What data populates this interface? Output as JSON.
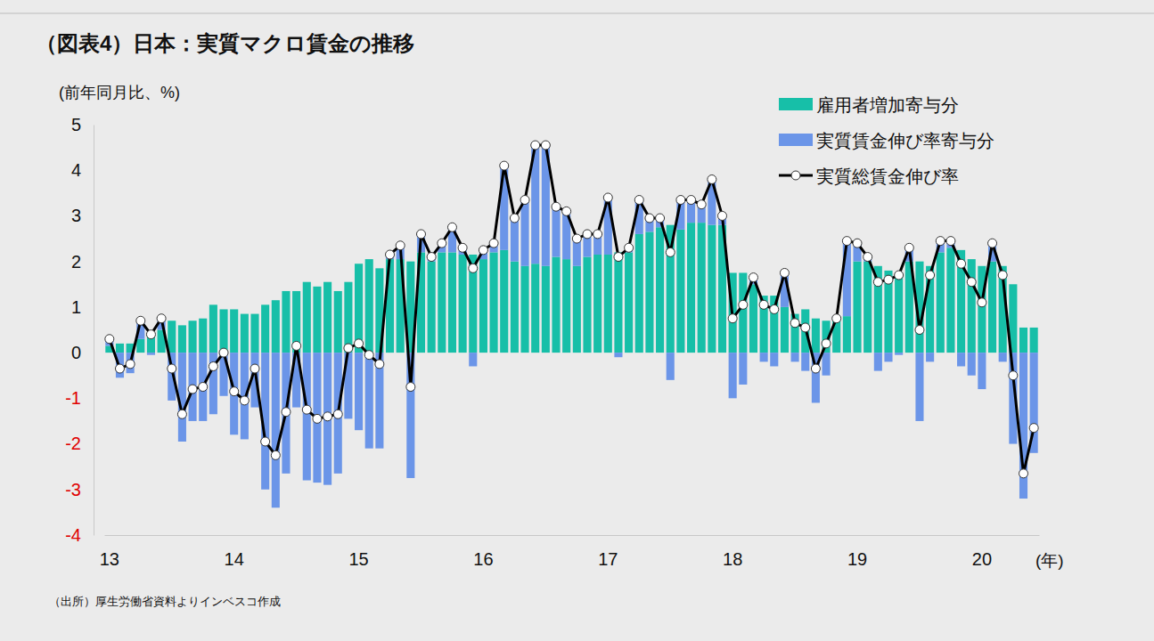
{
  "chart_data": {
    "type": "bar",
    "title": "（図表4）日本：実質マクロ賃金の推移",
    "ylabel": "(前年同月比、%)",
    "xlabel": "(年)",
    "source": "（出所）厚生労働省資料よりインベスコ作成",
    "stacked": true,
    "legend": "upper right",
    "grid": false,
    "categories": [
      "13",
      null,
      null,
      null,
      null,
      null,
      null,
      null,
      null,
      null,
      null,
      null,
      "14",
      null,
      null,
      null,
      null,
      null,
      null,
      null,
      null,
      null,
      null,
      null,
      "15",
      null,
      null,
      null,
      null,
      null,
      null,
      null,
      null,
      null,
      null,
      null,
      "16",
      null,
      null,
      null,
      null,
      null,
      null,
      null,
      null,
      null,
      null,
      null,
      "17",
      null,
      null,
      null,
      null,
      null,
      null,
      null,
      null,
      null,
      null,
      null,
      "18",
      null,
      null,
      null,
      null,
      null,
      null,
      null,
      null,
      null,
      null,
      null,
      "19",
      null,
      null,
      null,
      null,
      null,
      null,
      null,
      null,
      null,
      null,
      null,
      "20",
      null,
      null,
      null,
      null,
      null
    ],
    "ylim": [
      -4,
      5
    ],
    "yticks": [
      -4,
      -3,
      -2,
      -1,
      0,
      1,
      2,
      3,
      4,
      5
    ],
    "series": [
      {
        "name": "雇用者増加寄与分",
        "type": "bar",
        "color": "#17bfa8",
        "values": [
          0.15,
          0.2,
          0.2,
          0.3,
          0.45,
          0.5,
          0.7,
          0.6,
          0.7,
          0.75,
          1.05,
          0.95,
          0.95,
          0.85,
          0.85,
          1.05,
          1.15,
          1.35,
          1.35,
          1.55,
          1.45,
          1.55,
          1.35,
          1.55,
          1.95,
          2.05,
          1.85,
          2.05,
          2.05,
          2.0,
          2.2,
          2.0,
          2.2,
          2.2,
          2.15,
          2.15,
          2.05,
          2.2,
          2.25,
          2.0,
          1.9,
          1.95,
          1.9,
          2.1,
          2.05,
          1.9,
          2.1,
          2.15,
          2.15,
          2.2,
          2.2,
          2.6,
          2.65,
          2.75,
          2.8,
          2.7,
          2.85,
          2.85,
          2.8,
          2.8,
          1.75,
          1.75,
          1.5,
          1.25,
          1.25,
          1.0,
          0.85,
          0.95,
          0.75,
          0.7,
          0.75,
          0.8,
          2.0,
          2.0,
          1.9,
          1.8,
          1.75,
          2.0,
          2.0,
          1.9,
          2.2,
          2.3,
          2.25,
          2.05,
          1.9,
          2.0,
          1.9,
          1.5,
          0.55,
          0.55
        ]
      },
      {
        "name": "実質賃金伸び率寄与分",
        "type": "bar",
        "color": "#6b95e8",
        "values": [
          0.15,
          -0.55,
          -0.45,
          0.4,
          -0.05,
          0.25,
          -1.05,
          -1.95,
          -1.5,
          -1.5,
          -1.35,
          -0.95,
          -1.8,
          -1.9,
          -1.2,
          -3.0,
          -3.4,
          -2.65,
          -1.2,
          -2.8,
          -2.85,
          -2.9,
          -2.65,
          -1.45,
          -1.7,
          -2.1,
          -2.1,
          0.1,
          0.3,
          -2.75,
          0.4,
          0.1,
          0.2,
          0.55,
          0.15,
          -0.3,
          0.2,
          0.2,
          1.85,
          0.95,
          1.45,
          2.6,
          2.65,
          1.1,
          1.05,
          0.6,
          0.5,
          0.45,
          1.25,
          -0.1,
          0.1,
          0.75,
          0.3,
          0.2,
          -0.6,
          0.65,
          0.5,
          0.4,
          1.0,
          0.2,
          -1.0,
          -0.7,
          0.15,
          -0.2,
          -0.3,
          0.75,
          -0.2,
          -0.4,
          -1.1,
          -0.5,
          0.05,
          1.65,
          0.4,
          0.1,
          -0.4,
          -0.2,
          -0.05,
          0.3,
          -1.5,
          -0.2,
          0.25,
          0.15,
          -0.3,
          -0.5,
          -0.8,
          0.4,
          -0.2,
          -2.0,
          -3.2,
          -2.2
        ]
      },
      {
        "name": "実質総賃金伸び率",
        "type": "line",
        "color": "#000000",
        "marker": "circle",
        "values": [
          0.3,
          -0.35,
          -0.25,
          0.7,
          0.4,
          0.75,
          -0.35,
          -1.35,
          -0.8,
          -0.75,
          -0.3,
          0.0,
          -0.85,
          -1.05,
          -0.35,
          -1.95,
          -2.25,
          -1.3,
          0.15,
          -1.25,
          -1.45,
          -1.4,
          -1.35,
          0.1,
          0.2,
          -0.05,
          -0.25,
          2.15,
          2.35,
          -0.75,
          2.6,
          2.1,
          2.4,
          2.75,
          2.3,
          1.85,
          2.25,
          2.4,
          4.1,
          2.95,
          3.35,
          4.55,
          4.55,
          3.2,
          3.1,
          2.5,
          2.6,
          2.6,
          3.4,
          2.1,
          2.3,
          3.35,
          2.95,
          2.95,
          2.2,
          3.35,
          3.35,
          3.25,
          3.8,
          3.0,
          0.75,
          1.05,
          1.65,
          1.05,
          0.95,
          1.75,
          0.65,
          0.55,
          -0.35,
          0.2,
          0.75,
          2.45,
          2.4,
          2.1,
          1.55,
          1.6,
          1.7,
          2.3,
          0.5,
          1.7,
          2.45,
          2.45,
          1.95,
          1.55,
          1.1,
          2.4,
          1.7,
          -0.5,
          -2.65,
          -1.65
        ]
      }
    ]
  }
}
